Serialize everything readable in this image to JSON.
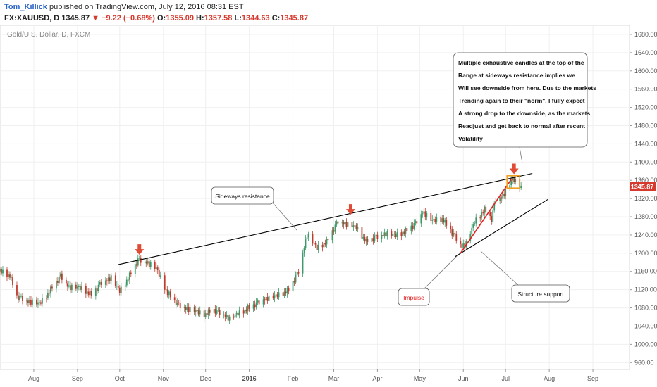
{
  "header": {
    "author": "Tom_Killick",
    "published": " published on TradingView.com, July 12, 2016 08:31 EST",
    "symbol": "FX:XAUUSD, D",
    "last": "1345.87",
    "change": "−9.22 (−0.68%)",
    "o_label": "O:",
    "o": "1355.09",
    "h_label": "H:",
    "h": "1357.58",
    "l_label": "L:",
    "l": "1344.63",
    "c_label": "C:",
    "c": "1345.87"
  },
  "colors": {
    "up": "#3c9a6a",
    "down": "#c0392b",
    "arrow": "#e04b36",
    "impulse": "#e02020",
    "box": "#f0a020",
    "price_tag": "#d63a2e"
  },
  "chart_data": {
    "type": "candlestick",
    "title": "Gold/U.S. Dollar, D, FXCM",
    "y_ticks": [
      960,
      1000,
      1040,
      1080,
      1120,
      1160,
      1200,
      1240,
      1280,
      1320,
      1360,
      1400,
      1440,
      1480,
      1520,
      1560,
      1600,
      1640,
      1680
    ],
    "ylim": [
      945,
      1700
    ],
    "x_ticks": [
      {
        "label": "Aug",
        "date": "2015-08-01"
      },
      {
        "label": "Sep",
        "date": "2015-09-01"
      },
      {
        "label": "Oct",
        "date": "2015-10-01"
      },
      {
        "label": "Nov",
        "date": "2015-11-01"
      },
      {
        "label": "Dec",
        "date": "2015-12-01"
      },
      {
        "label": "2016",
        "date": "2016-01-01"
      },
      {
        "label": "Feb",
        "date": "2016-02-01"
      },
      {
        "label": "Mar",
        "date": "2016-03-01"
      },
      {
        "label": "Apr",
        "date": "2016-04-01"
      },
      {
        "label": "May",
        "date": "2016-05-01"
      },
      {
        "label": "Jun",
        "date": "2016-06-01"
      },
      {
        "label": "Jul",
        "date": "2016-07-01"
      },
      {
        "label": "Aug",
        "date": "2016-08-01"
      },
      {
        "label": "Sep",
        "date": "2016-09-01"
      }
    ],
    "xlim": [
      "2015-07-08",
      "2016-09-27"
    ],
    "last_price": "1345.87",
    "price_path": [
      [
        "2015-07-08",
        1160
      ],
      [
        "2015-07-15",
        1150
      ],
      [
        "2015-07-20",
        1105
      ],
      [
        "2015-07-27",
        1095
      ],
      [
        "2015-08-05",
        1088
      ],
      [
        "2015-08-12",
        1115
      ],
      [
        "2015-08-20",
        1150
      ],
      [
        "2015-08-26",
        1125
      ],
      [
        "2015-09-04",
        1122
      ],
      [
        "2015-09-11",
        1108
      ],
      [
        "2015-09-18",
        1135
      ],
      [
        "2015-09-25",
        1145
      ],
      [
        "2015-10-01",
        1115
      ],
      [
        "2015-10-08",
        1150
      ],
      [
        "2015-10-14",
        1185
      ],
      [
        "2015-10-20",
        1180
      ],
      [
        "2015-10-27",
        1165
      ],
      [
        "2015-11-04",
        1112
      ],
      [
        "2015-11-12",
        1085
      ],
      [
        "2015-11-20",
        1075
      ],
      [
        "2015-11-30",
        1065
      ],
      [
        "2015-12-07",
        1075
      ],
      [
        "2015-12-14",
        1065
      ],
      [
        "2015-12-18",
        1055
      ],
      [
        "2015-12-25",
        1068
      ],
      [
        "2016-01-04",
        1085
      ],
      [
        "2016-01-11",
        1098
      ],
      [
        "2016-01-20",
        1105
      ],
      [
        "2016-01-29",
        1118
      ],
      [
        "2016-02-05",
        1160
      ],
      [
        "2016-02-11",
        1240
      ],
      [
        "2016-02-18",
        1210
      ],
      [
        "2016-02-25",
        1225
      ],
      [
        "2016-03-04",
        1270
      ],
      [
        "2016-03-11",
        1262
      ],
      [
        "2016-03-17",
        1255
      ],
      [
        "2016-03-24",
        1225
      ],
      [
        "2016-03-31",
        1235
      ],
      [
        "2016-04-07",
        1242
      ],
      [
        "2016-04-14",
        1238
      ],
      [
        "2016-04-21",
        1248
      ],
      [
        "2016-04-28",
        1265
      ],
      [
        "2016-05-03",
        1290
      ],
      [
        "2016-05-10",
        1270
      ],
      [
        "2016-05-17",
        1275
      ],
      [
        "2016-05-24",
        1245
      ],
      [
        "2016-05-31",
        1215
      ],
      [
        "2016-06-03",
        1220
      ],
      [
        "2016-06-09",
        1268
      ],
      [
        "2016-06-16",
        1295
      ],
      [
        "2016-06-21",
        1275
      ],
      [
        "2016-06-24",
        1320
      ],
      [
        "2016-06-28",
        1322
      ],
      [
        "2016-07-01",
        1335
      ],
      [
        "2016-07-06",
        1362
      ],
      [
        "2016-07-12",
        1346
      ]
    ],
    "trendlines": [
      {
        "name": "sideways-resistance",
        "from": [
          "2015-09-30",
          1175
        ],
        "to": [
          "2016-07-20",
          1375
        ],
        "color": "#000000"
      },
      {
        "name": "structure-support",
        "from": [
          "2016-05-26",
          1192
        ],
        "to": [
          "2016-07-31",
          1318
        ],
        "color": "#000000"
      },
      {
        "name": "impulse-line",
        "from": [
          "2016-05-30",
          1200
        ],
        "to": [
          "2016-07-05",
          1362
        ],
        "color": "#e02020"
      }
    ],
    "arrows": [
      {
        "name": "arrow-oct",
        "date": "2015-10-15",
        "price": 1195
      },
      {
        "name": "arrow-mar",
        "date": "2016-03-13",
        "price": 1283
      },
      {
        "name": "arrow-jul",
        "date": "2016-07-07",
        "price": 1372
      }
    ],
    "highlight_box": {
      "from": [
        "2016-07-02",
        1370
      ],
      "to": [
        "2016-07-11",
        1343
      ]
    },
    "annotations": {
      "resistance_label": "Sideways resistance",
      "impulse_label": "Impulse",
      "support_label": "Structure support",
      "callout_lines": [
        "Multiple exhaustive candles at the top of the",
        "Range at sideways resistance implies we",
        "Will see downside from here. Due to the markets",
        "Trending again to their \"norm\", I fully expect",
        "A strong drop to the downside, as the markets",
        "Readjust and get back to normal after recent",
        "Volatility"
      ]
    }
  }
}
